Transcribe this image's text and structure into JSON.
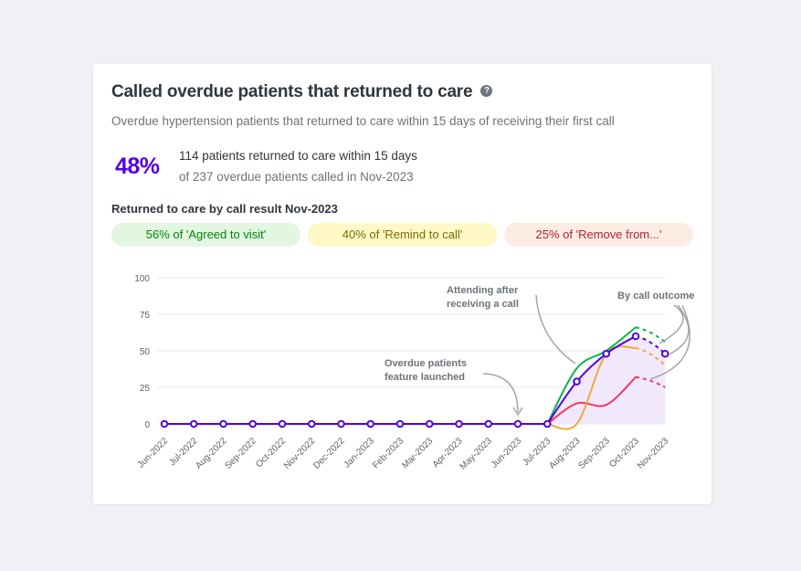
{
  "card": {
    "title": "Called overdue patients that returned to care",
    "help_icon": "?",
    "subtitle": "Overdue hypertension patients that returned to care within 15 days of receiving their first call",
    "percent": "48%",
    "numerator_text": "114 patients returned to care within 15 days",
    "denominator_text": "of 237 overdue patients called in Nov-2023",
    "breakdown_title": "Returned to care by call result Nov-2023",
    "pills": {
      "agreed": "56% of 'Agreed to visit'",
      "remind": "40% of 'Remind to call'",
      "remove": "25% of 'Remove from...'"
    }
  },
  "colors": {
    "total": "#5300e0",
    "agreed": "#00b849",
    "remind": "#f0a93b",
    "remove": "#f0385c",
    "fill": "#f1e8fd",
    "grid": "#e6e8eb",
    "annotation": "#a0a5aa"
  },
  "chart_data": {
    "type": "line",
    "x": [
      "Jun-2022",
      "Jul-2022",
      "Aug-2022",
      "Sep-2022",
      "Oct-2022",
      "Nov-2022",
      "Dec-2022",
      "Jan-2023",
      "Feb-2023",
      "Mar-2023",
      "Apr-2023",
      "May-2023",
      "Jun-2023",
      "Jul-2023",
      "Aug-2023",
      "Sep-2023",
      "Oct-2023",
      "Nov-2023"
    ],
    "ylim": [
      0,
      100
    ],
    "yticks": [
      0,
      25,
      50,
      75,
      100
    ],
    "grid": true,
    "series": [
      {
        "key": "total",
        "values": [
          0,
          0,
          0,
          0,
          0,
          0,
          0,
          0,
          0,
          0,
          0,
          0,
          0,
          0,
          29,
          48,
          60,
          48
        ],
        "markers": true,
        "area": true
      },
      {
        "key": "agreed",
        "values": [
          0,
          0,
          0,
          0,
          0,
          0,
          0,
          0,
          0,
          0,
          0,
          0,
          0,
          0,
          38,
          50,
          66,
          56
        ],
        "markers": false
      },
      {
        "key": "remind",
        "values": [
          0,
          0,
          0,
          0,
          0,
          0,
          0,
          0,
          0,
          0,
          0,
          0,
          0,
          0,
          0,
          48,
          52,
          40
        ],
        "markers": false
      },
      {
        "key": "remove",
        "values": [
          0,
          0,
          0,
          0,
          0,
          0,
          0,
          0,
          0,
          0,
          0,
          0,
          0,
          0,
          14,
          13,
          32,
          25
        ],
        "markers": false
      }
    ],
    "annotations": [
      {
        "text": [
          "Overdue patients",
          "feature launched"
        ]
      },
      {
        "text": [
          "Attending after",
          "receiving a call"
        ]
      },
      {
        "text": [
          "By call outcome"
        ]
      }
    ]
  }
}
